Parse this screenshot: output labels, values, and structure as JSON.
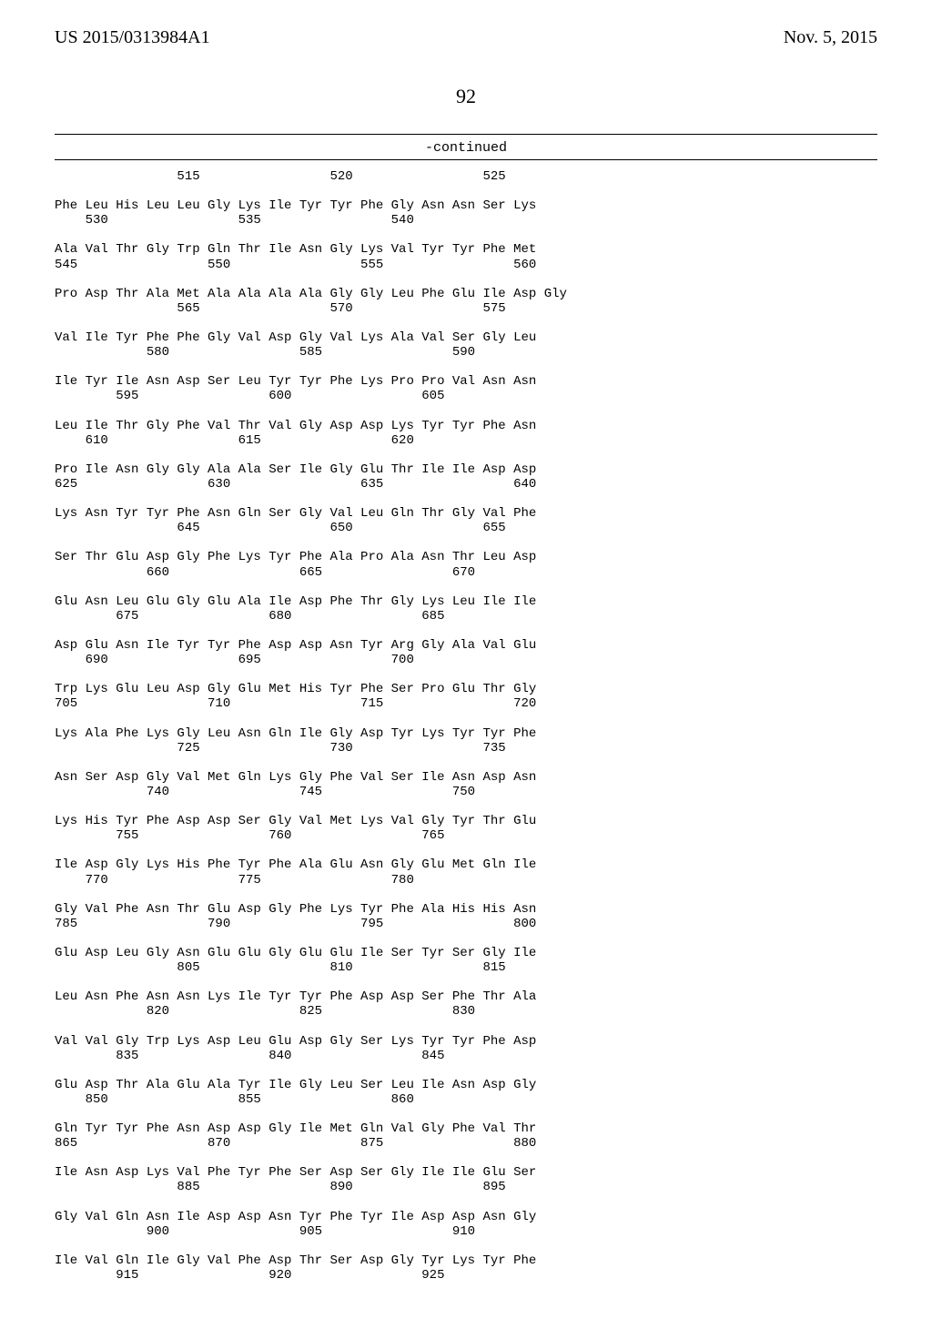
{
  "header": {
    "publication_number": "US 2015/0313984A1",
    "publication_date": "Nov. 5, 2015"
  },
  "page_number": "92",
  "continued_label": "-continued",
  "sequence": {
    "font_family": "Courier New",
    "font_size_pt": 10,
    "background_color": "#ffffff",
    "text_color": "#000000",
    "top_numbers": {
      "values": [
        "515",
        "520",
        "525"
      ],
      "col_positions": [
        16,
        36,
        56
      ]
    },
    "groups": [
      {
        "aa": "Phe Leu His Leu Leu Gly Lys Ile Tyr Tyr Phe Gly Asn Asn Ser Lys",
        "nums": [
          [
            530,
            4
          ],
          [
            535,
            24
          ],
          [
            540,
            44
          ]
        ]
      },
      {
        "aa": "Ala Val Thr Gly Trp Gln Thr Ile Asn Gly Lys Val Tyr Tyr Phe Met",
        "nums": [
          [
            545,
            0
          ],
          [
            550,
            20
          ],
          [
            555,
            40
          ],
          [
            560,
            60
          ]
        ]
      },
      {
        "aa": "Pro Asp Thr Ala Met Ala Ala Ala Ala Gly Gly Leu Phe Glu Ile Asp Gly",
        "nums": [
          [
            565,
            16
          ],
          [
            570,
            36
          ],
          [
            575,
            56
          ]
        ]
      },
      {
        "aa": "Val Ile Tyr Phe Phe Gly Val Asp Gly Val Lys Ala Val Ser Gly Leu",
        "nums": [
          [
            580,
            12
          ],
          [
            585,
            32
          ],
          [
            590,
            52
          ]
        ]
      },
      {
        "aa": "Ile Tyr Ile Asn Asp Ser Leu Tyr Tyr Phe Lys Pro Pro Val Asn Asn",
        "nums": [
          [
            595,
            8
          ],
          [
            600,
            28
          ],
          [
            605,
            48
          ]
        ]
      },
      {
        "aa": "Leu Ile Thr Gly Phe Val Thr Val Gly Asp Asp Lys Tyr Tyr Phe Asn",
        "nums": [
          [
            610,
            4
          ],
          [
            615,
            24
          ],
          [
            620,
            44
          ]
        ]
      },
      {
        "aa": "Pro Ile Asn Gly Gly Ala Ala Ser Ile Gly Glu Thr Ile Ile Asp Asp",
        "nums": [
          [
            625,
            0
          ],
          [
            630,
            20
          ],
          [
            635,
            40
          ],
          [
            640,
            60
          ]
        ]
      },
      {
        "aa": "Lys Asn Tyr Tyr Phe Asn Gln Ser Gly Val Leu Gln Thr Gly Val Phe",
        "nums": [
          [
            645,
            16
          ],
          [
            650,
            36
          ],
          [
            655,
            56
          ]
        ]
      },
      {
        "aa": "Ser Thr Glu Asp Gly Phe Lys Tyr Phe Ala Pro Ala Asn Thr Leu Asp",
        "nums": [
          [
            660,
            12
          ],
          [
            665,
            32
          ],
          [
            670,
            52
          ]
        ]
      },
      {
        "aa": "Glu Asn Leu Glu Gly Glu Ala Ile Asp Phe Thr Gly Lys Leu Ile Ile",
        "nums": [
          [
            675,
            8
          ],
          [
            680,
            28
          ],
          [
            685,
            48
          ]
        ]
      },
      {
        "aa": "Asp Glu Asn Ile Tyr Tyr Phe Asp Asp Asn Tyr Arg Gly Ala Val Glu",
        "nums": [
          [
            690,
            4
          ],
          [
            695,
            24
          ],
          [
            700,
            44
          ]
        ]
      },
      {
        "aa": "Trp Lys Glu Leu Asp Gly Glu Met His Tyr Phe Ser Pro Glu Thr Gly",
        "nums": [
          [
            705,
            0
          ],
          [
            710,
            20
          ],
          [
            715,
            40
          ],
          [
            720,
            60
          ]
        ]
      },
      {
        "aa": "Lys Ala Phe Lys Gly Leu Asn Gln Ile Gly Asp Tyr Lys Tyr Tyr Phe",
        "nums": [
          [
            725,
            16
          ],
          [
            730,
            36
          ],
          [
            735,
            56
          ]
        ]
      },
      {
        "aa": "Asn Ser Asp Gly Val Met Gln Lys Gly Phe Val Ser Ile Asn Asp Asn",
        "nums": [
          [
            740,
            12
          ],
          [
            745,
            32
          ],
          [
            750,
            52
          ]
        ]
      },
      {
        "aa": "Lys His Tyr Phe Asp Asp Ser Gly Val Met Lys Val Gly Tyr Thr Glu",
        "nums": [
          [
            755,
            8
          ],
          [
            760,
            28
          ],
          [
            765,
            48
          ]
        ]
      },
      {
        "aa": "Ile Asp Gly Lys His Phe Tyr Phe Ala Glu Asn Gly Glu Met Gln Ile",
        "nums": [
          [
            770,
            4
          ],
          [
            775,
            24
          ],
          [
            780,
            44
          ]
        ]
      },
      {
        "aa": "Gly Val Phe Asn Thr Glu Asp Gly Phe Lys Tyr Phe Ala His His Asn",
        "nums": [
          [
            785,
            0
          ],
          [
            790,
            20
          ],
          [
            795,
            40
          ],
          [
            800,
            60
          ]
        ]
      },
      {
        "aa": "Glu Asp Leu Gly Asn Glu Glu Gly Glu Glu Ile Ser Tyr Ser Gly Ile",
        "nums": [
          [
            805,
            16
          ],
          [
            810,
            36
          ],
          [
            815,
            56
          ]
        ]
      },
      {
        "aa": "Leu Asn Phe Asn Asn Lys Ile Tyr Tyr Phe Asp Asp Ser Phe Thr Ala",
        "nums": [
          [
            820,
            12
          ],
          [
            825,
            32
          ],
          [
            830,
            52
          ]
        ]
      },
      {
        "aa": "Val Val Gly Trp Lys Asp Leu Glu Asp Gly Ser Lys Tyr Tyr Phe Asp",
        "nums": [
          [
            835,
            8
          ],
          [
            840,
            28
          ],
          [
            845,
            48
          ]
        ]
      },
      {
        "aa": "Glu Asp Thr Ala Glu Ala Tyr Ile Gly Leu Ser Leu Ile Asn Asp Gly",
        "nums": [
          [
            850,
            4
          ],
          [
            855,
            24
          ],
          [
            860,
            44
          ]
        ]
      },
      {
        "aa": "Gln Tyr Tyr Phe Asn Asp Asp Gly Ile Met Gln Val Gly Phe Val Thr",
        "nums": [
          [
            865,
            0
          ],
          [
            870,
            20
          ],
          [
            875,
            40
          ],
          [
            880,
            60
          ]
        ]
      },
      {
        "aa": "Ile Asn Asp Lys Val Phe Tyr Phe Ser Asp Ser Gly Ile Ile Glu Ser",
        "nums": [
          [
            885,
            16
          ],
          [
            890,
            36
          ],
          [
            895,
            56
          ]
        ]
      },
      {
        "aa": "Gly Val Gln Asn Ile Asp Asp Asn Tyr Phe Tyr Ile Asp Asp Asn Gly",
        "nums": [
          [
            900,
            12
          ],
          [
            905,
            32
          ],
          [
            910,
            52
          ]
        ]
      },
      {
        "aa": "Ile Val Gln Ile Gly Val Phe Asp Thr Ser Asp Gly Tyr Lys Tyr Phe",
        "nums": [
          [
            915,
            8
          ],
          [
            920,
            28
          ],
          [
            925,
            48
          ]
        ]
      }
    ]
  }
}
